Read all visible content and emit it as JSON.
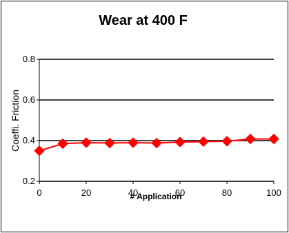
{
  "chart_data": {
    "type": "line",
    "title": "Wear at 400 F",
    "xlabel": "# Application",
    "ylabel": "Coeffi. Friction",
    "xlim": [
      0,
      100
    ],
    "ylim": [
      0.2,
      0.8
    ],
    "xticks": [
      0,
      20,
      40,
      60,
      80,
      100
    ],
    "yticks": [
      0.2,
      0.4,
      0.6,
      0.8
    ],
    "ytick_labels": [
      "0.2",
      "0.4",
      "0.6",
      "0.8"
    ],
    "grid": "horizontal",
    "legend": "none",
    "series": [
      {
        "color": "#ff0000",
        "marker": "diamond",
        "x": [
          0,
          10,
          20,
          30,
          40,
          50,
          60,
          70,
          80,
          90,
          100
        ],
        "y": [
          0.35,
          0.385,
          0.39,
          0.388,
          0.39,
          0.388,
          0.393,
          0.395,
          0.397,
          0.408,
          0.408
        ]
      }
    ]
  }
}
